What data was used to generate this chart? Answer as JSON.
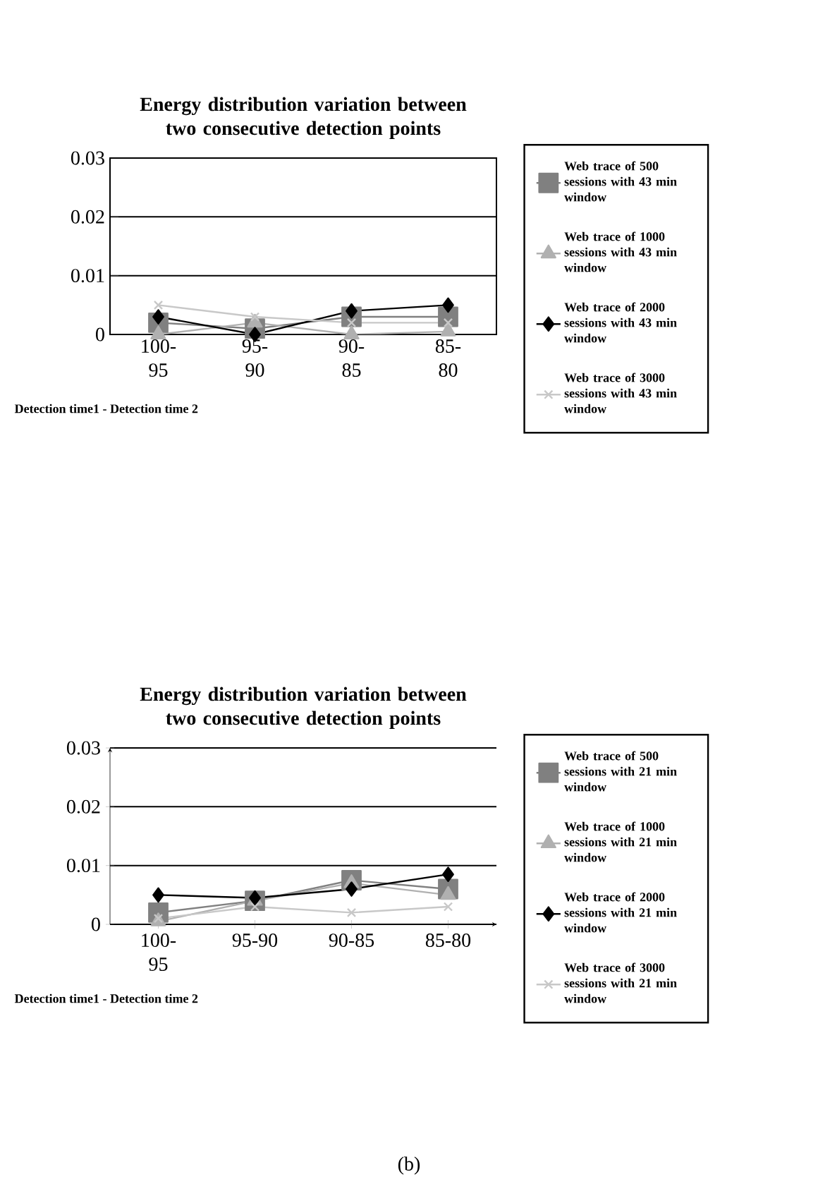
{
  "chart_data": [
    {
      "type": "line",
      "title": "Energy distribution variation between two consecutive detection points",
      "xlabel": "Detection time1 - Detection time 2",
      "categories": [
        "100-95",
        "95-90",
        "90-85",
        "85-80"
      ],
      "series": [
        {
          "name": "Web trace of 500 sessions with 43 min window",
          "color": "#808080",
          "marker": "square",
          "values": [
            0.002,
            0.001,
            0.003,
            0.003
          ]
        },
        {
          "name": "Web trace of 1000 sessions with 43 min window",
          "color": "#b0b0b0",
          "marker": "triangle",
          "values": [
            0,
            0.002,
            0,
            0.0005
          ]
        },
        {
          "name": "Web trace of 2000 sessions with 43 min window",
          "color": "#000000",
          "marker": "diamond",
          "values": [
            0.003,
            0,
            0.004,
            0.005
          ]
        },
        {
          "name": "Web trace of 3000 sessions with 43 min window",
          "color": "#c8c8c8",
          "marker": "cross",
          "values": [
            0.005,
            0.003,
            0.002,
            0.002
          ]
        }
      ],
      "ylim": [
        0,
        0.03
      ],
      "yticks": [
        0,
        0.01,
        0.02,
        0.03
      ],
      "grid": "y",
      "legend": "right"
    },
    {
      "type": "line",
      "title": "Energy distribution variation between two consecutive detection points",
      "xlabel": "Detection time1 - Detection time 2",
      "categories": [
        "100-95",
        "95-90",
        "90-85",
        "85-80"
      ],
      "series": [
        {
          "name": "Web trace of 500 sessions with 21 min window",
          "color": "#808080",
          "marker": "square",
          "values": [
            0.002,
            0.004,
            0.0075,
            0.006
          ]
        },
        {
          "name": "Web trace of 1000 sessions with 21 min window",
          "color": "#b0b0b0",
          "marker": "triangle",
          "values": [
            0.0005,
            0.004,
            0.007,
            0.005
          ]
        },
        {
          "name": "Web trace of 2000 sessions with 21 min window",
          "color": "#000000",
          "marker": "diamond",
          "values": [
            0.005,
            0.0045,
            0.006,
            0.0085
          ]
        },
        {
          "name": "Web trace of 3000 sessions with 21 min window",
          "color": "#c8c8c8",
          "marker": "cross",
          "values": [
            0.001,
            0.003,
            0.002,
            0.003
          ]
        }
      ],
      "ylim": [
        0,
        0.03
      ],
      "yticks": [
        0,
        0.01,
        0.02,
        0.03
      ],
      "grid": "y",
      "legend": "right",
      "annotations": [
        "(b)"
      ]
    }
  ]
}
